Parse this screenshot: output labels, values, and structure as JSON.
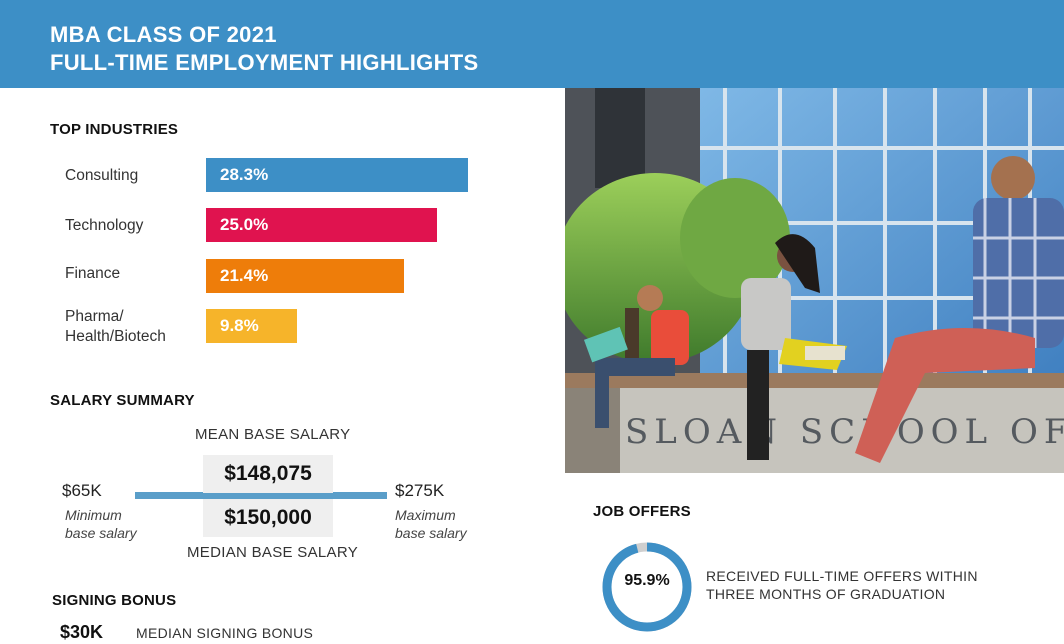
{
  "header": {
    "line1": "MBA CLASS OF 2021",
    "line2": "FULL-TIME EMPLOYMENT HIGHLIGHTS",
    "bg_color": "#3d8fc6"
  },
  "industries": {
    "title": "TOP INDUSTRIES",
    "items": [
      {
        "label": "Consulting",
        "value_text": "28.3%"
      },
      {
        "label": "Technology",
        "value_text": "25.0%"
      },
      {
        "label": "Finance",
        "value_text": "21.4%"
      },
      {
        "label": "Pharma/ Health/Biotech",
        "label_line1": "Pharma/",
        "label_line2": "Health/Biotech",
        "value_text": "9.8%"
      }
    ]
  },
  "chart_data": {
    "type": "bar",
    "orientation": "horizontal",
    "title": "TOP INDUSTRIES",
    "categories": [
      "Consulting",
      "Technology",
      "Finance",
      "Pharma/Health/Biotech"
    ],
    "values": [
      28.3,
      25.0,
      21.4,
      9.8
    ],
    "unit": "%",
    "colors": [
      "#3d8fc6",
      "#e0134f",
      "#ee7d0a",
      "#f6b42a"
    ],
    "xlim": [
      0,
      28.3
    ],
    "grid": false,
    "legend": "none"
  },
  "salary": {
    "title": "SALARY SUMMARY",
    "mean_caption": "MEAN BASE SALARY",
    "mean_value": "$148,075",
    "median_value": "$150,000",
    "median_caption": "MEDIAN BASE SALARY",
    "min_value": "$65K",
    "min_note_line1": "Minimum",
    "min_note_line2": "base salary",
    "max_value": "$275K",
    "max_note_line1": "Maximum",
    "max_note_line2": "base salary"
  },
  "signing_bonus": {
    "title": "SIGNING BONUS",
    "value": "$30K",
    "caption": "MEDIAN SIGNING BONUS"
  },
  "photo": {
    "sign_text": "SLOAN SCHOOL OF MAN"
  },
  "job_offers": {
    "title": "JOB OFFERS",
    "value_text": "95.9%",
    "fraction": 0.959,
    "line1": "RECEIVED FULL-TIME OFFERS WITHIN",
    "line2": "THREE MONTHS OF GRADUATION",
    "ring_color": "#3d8fc6",
    "ring_track_color": "#cfcfcf"
  }
}
